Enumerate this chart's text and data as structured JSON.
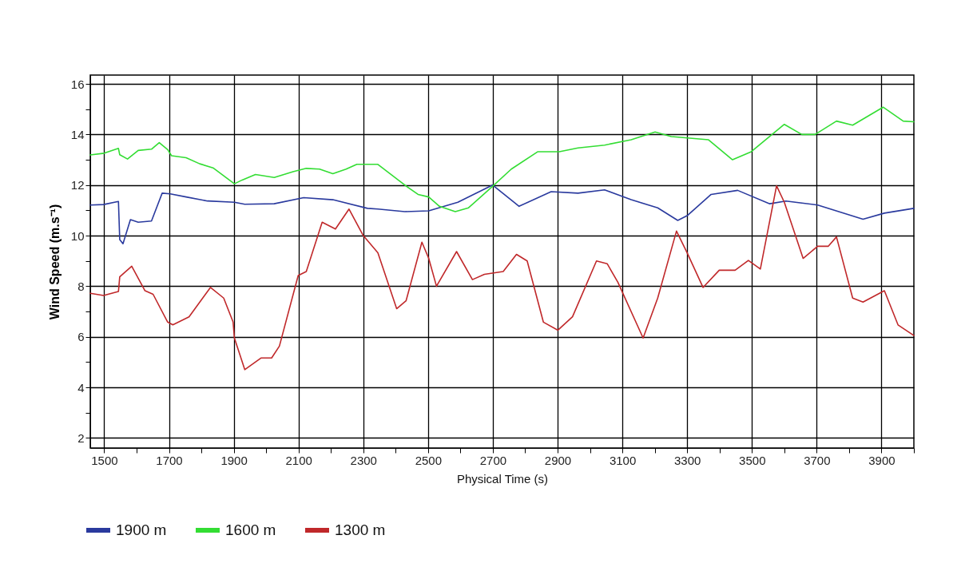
{
  "chart_data": {
    "type": "line",
    "xlabel": "Physical Time (s)",
    "ylabel": "Wind Speed (m.s⁻¹)",
    "xlim": [
      1457,
      4000
    ],
    "ylim": [
      1.6,
      16.35
    ],
    "xticks": [
      1500,
      {
        "value": 1600,
        "label": null
      },
      1700,
      {
        "value": 1800,
        "label": null
      },
      1900,
      {
        "value": 2000,
        "label": null
      },
      2100,
      {
        "value": 2200,
        "label": null
      },
      2300,
      {
        "value": 2400,
        "label": null
      },
      2500,
      {
        "value": 2600,
        "label": null
      },
      2700,
      {
        "value": 2800,
        "label": null
      },
      2900,
      {
        "value": 3000,
        "label": null
      },
      3100,
      {
        "value": 3200,
        "label": null
      },
      3300,
      {
        "value": 3400,
        "label": null
      },
      3500,
      {
        "value": 3600,
        "label": null
      },
      3700,
      {
        "value": 3800,
        "label": null
      },
      3900,
      {
        "value": 4000,
        "label": null
      }
    ],
    "yticks": [
      2,
      {
        "value": 3,
        "label": null
      },
      4,
      {
        "value": 5,
        "label": null
      },
      6,
      {
        "value": 7,
        "label": null
      },
      8,
      {
        "value": 9,
        "label": null
      },
      10,
      {
        "value": 11,
        "label": null
      },
      12,
      {
        "value": 13,
        "label": null
      },
      14,
      {
        "value": 15,
        "label": null
      },
      16
    ],
    "grid": true,
    "legend": "bottom left",
    "marker": "none",
    "line_style": "solid",
    "series": [
      {
        "name": "1900 m",
        "color": "#2a3a9e",
        "x": [
          1457,
          1498,
          1544,
          1548,
          1558,
          1581,
          1605,
          1646,
          1679,
          1704,
          1753,
          1819,
          1902,
          1934,
          2025,
          2116,
          2206,
          2313,
          2345,
          2428,
          2502,
          2592,
          2699,
          2781,
          2880,
          2963,
          3045,
          3127,
          3209,
          3271,
          3300,
          3374,
          3456,
          3555,
          3605,
          3703,
          3843,
          3909,
          4000
        ],
        "values": [
          11.21,
          11.23,
          11.35,
          9.84,
          9.68,
          10.63,
          10.53,
          10.58,
          11.68,
          11.65,
          11.53,
          11.37,
          11.32,
          11.24,
          11.26,
          11.5,
          11.42,
          11.08,
          11.05,
          10.95,
          10.98,
          11.32,
          12.0,
          11.16,
          11.74,
          11.68,
          11.81,
          11.42,
          11.1,
          10.6,
          10.79,
          11.63,
          11.79,
          11.26,
          11.37,
          11.21,
          10.65,
          10.89,
          11.08
        ]
      },
      {
        "name": "1600 m",
        "color": "#33dd33",
        "x": [
          1457,
          1500,
          1544,
          1548,
          1572,
          1605,
          1646,
          1670,
          1696,
          1708,
          1753,
          1795,
          1836,
          1902,
          1926,
          1967,
          2025,
          2083,
          2124,
          2165,
          2206,
          2247,
          2280,
          2345,
          2428,
          2469,
          2502,
          2535,
          2584,
          2625,
          2699,
          2757,
          2839,
          2905,
          2963,
          3045,
          3127,
          3201,
          3251,
          3366,
          3440,
          3498,
          3600,
          3654,
          3695,
          3761,
          3811,
          3905,
          3967,
          4000
        ],
        "values": [
          13.19,
          13.26,
          13.45,
          13.2,
          13.03,
          13.37,
          13.42,
          13.68,
          13.4,
          13.16,
          13.08,
          12.84,
          12.68,
          12.05,
          12.2,
          12.42,
          12.3,
          12.53,
          12.66,
          12.63,
          12.45,
          12.63,
          12.82,
          12.82,
          12.0,
          11.63,
          11.53,
          11.16,
          10.95,
          11.1,
          11.95,
          12.63,
          13.32,
          13.32,
          13.47,
          13.58,
          13.79,
          14.1,
          13.92,
          13.79,
          13.0,
          13.32,
          14.4,
          14.0,
          14.0,
          14.53,
          14.37,
          15.08,
          14.53,
          14.5
        ]
      },
      {
        "name": "1300 m",
        "color": "#c0282a",
        "x": [
          1457,
          1498,
          1544,
          1548,
          1585,
          1626,
          1651,
          1696,
          1712,
          1762,
          1828,
          1869,
          1898,
          1902,
          1934,
          1984,
          2017,
          2041,
          2099,
          2124,
          2173,
          2214,
          2256,
          2300,
          2345,
          2403,
          2432,
          2481,
          2502,
          2526,
          2588,
          2637,
          2674,
          2732,
          2773,
          2806,
          2856,
          2901,
          2946,
          3020,
          3053,
          3086,
          3164,
          3209,
          3267,
          3300,
          3349,
          3399,
          3448,
          3489,
          3526,
          3576,
          3600,
          3658,
          3703,
          3736,
          3761,
          3811,
          3843,
          3909,
          3951,
          4000
        ],
        "values": [
          7.72,
          7.63,
          7.79,
          8.37,
          8.79,
          7.82,
          7.68,
          6.58,
          6.47,
          6.79,
          7.95,
          7.53,
          6.58,
          5.95,
          4.7,
          5.16,
          5.16,
          5.63,
          8.42,
          8.58,
          10.53,
          10.26,
          11.05,
          10.0,
          9.32,
          7.11,
          7.42,
          9.74,
          9.1,
          8.0,
          9.37,
          8.26,
          8.47,
          8.58,
          9.26,
          9.0,
          6.58,
          6.26,
          6.79,
          9.0,
          8.89,
          8.16,
          5.95,
          7.53,
          10.18,
          9.32,
          7.95,
          8.63,
          8.63,
          9.02,
          8.68,
          11.97,
          11.32,
          9.1,
          9.58,
          9.58,
          9.95,
          7.53,
          7.37,
          7.82,
          6.47,
          6.05
        ]
      }
    ]
  }
}
